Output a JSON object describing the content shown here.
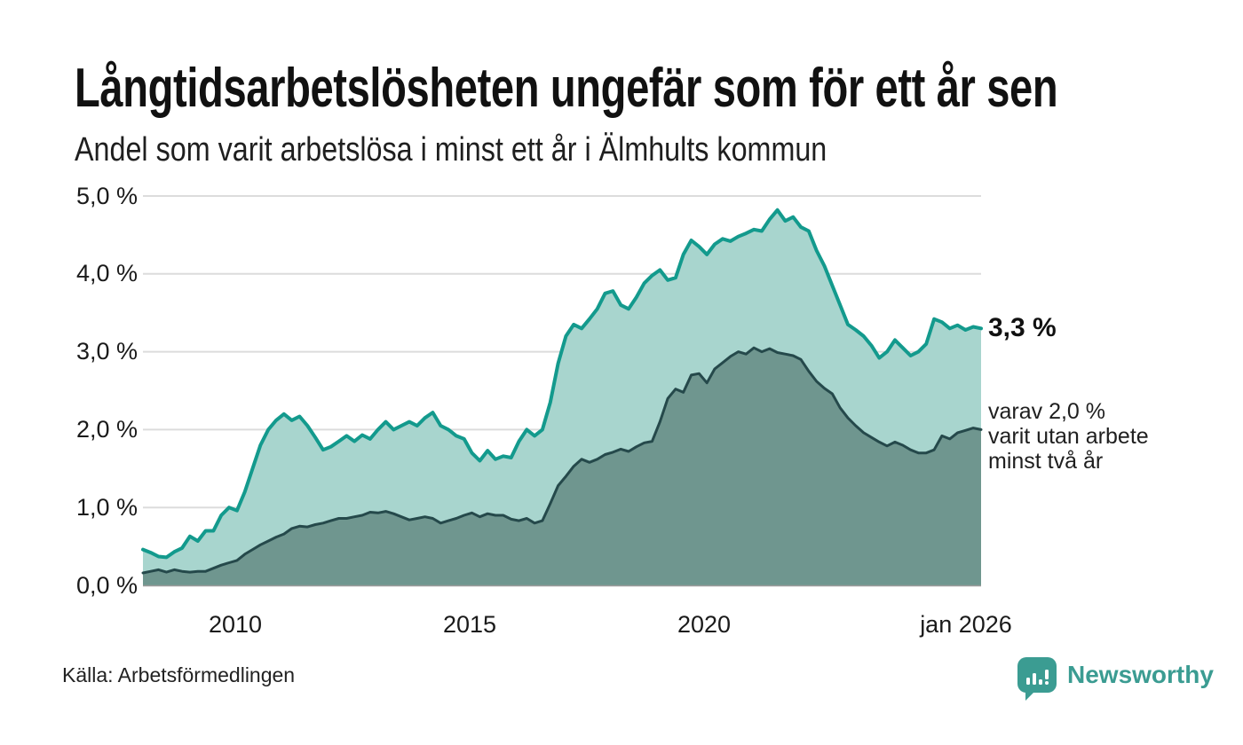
{
  "header": {
    "title": "Långtidsarbetslösheten ungefär som för ett år sen",
    "subtitle": "Andel som varit arbetslösa i minst ett år i Älmhults kommun"
  },
  "chart_data": {
    "type": "area",
    "title": "Långtidsarbetslösheten ungefär som för ett år sen",
    "subtitle": "Andel som varit arbetslösa i minst ett år i Älmhults kommun",
    "unit": "%",
    "ylim": [
      0,
      5
    ],
    "grid": true,
    "x_range": [
      "2008",
      "jan 2026"
    ],
    "y_tick_labels": [
      "5,0 %",
      "4,0 %",
      "3,0 %",
      "2,0 %",
      "1,0 %",
      "0,0 %"
    ],
    "x_tick_labels": [
      "2010",
      "2015",
      "2020",
      "jan 2026"
    ],
    "series": [
      {
        "name": "Arbetslösa minst ett år",
        "color": "#139a8d",
        "fill": "#a8d5ce",
        "last_value": 3.3,
        "values": [
          0.46,
          0.42,
          0.37,
          0.36,
          0.43,
          0.48,
          0.63,
          0.57,
          0.7,
          0.7,
          0.9,
          1.0,
          0.96,
          1.2,
          1.5,
          1.8,
          2.0,
          2.12,
          2.2,
          2.12,
          2.17,
          2.05,
          1.9,
          1.74,
          1.78,
          1.85,
          1.92,
          1.85,
          1.93,
          1.88,
          2.0,
          2.1,
          2.0,
          2.05,
          2.1,
          2.05,
          2.15,
          2.22,
          2.05,
          2.0,
          1.92,
          1.88,
          1.7,
          1.6,
          1.73,
          1.62,
          1.66,
          1.64,
          1.85,
          2.0,
          1.92,
          2.0,
          2.35,
          2.85,
          3.2,
          3.35,
          3.3,
          3.42,
          3.55,
          3.75,
          3.78,
          3.6,
          3.55,
          3.7,
          3.88,
          3.98,
          4.05,
          3.92,
          3.95,
          4.25,
          4.43,
          4.35,
          4.25,
          4.38,
          4.45,
          4.42,
          4.48,
          4.52,
          4.57,
          4.55,
          4.7,
          4.82,
          4.68,
          4.73,
          4.6,
          4.55,
          4.3,
          4.1,
          3.85,
          3.6,
          3.35,
          3.28,
          3.2,
          3.08,
          2.92,
          3.0,
          3.15,
          3.05,
          2.95,
          3.0,
          3.1,
          3.42,
          3.38,
          3.3,
          3.34,
          3.28,
          3.32,
          3.3
        ]
      },
      {
        "name": "varav utan arbete minst två år",
        "color": "#25494b",
        "fill": "#6f968f",
        "last_value": 2.0,
        "values": [
          0.16,
          0.18,
          0.2,
          0.17,
          0.2,
          0.18,
          0.17,
          0.18,
          0.18,
          0.22,
          0.26,
          0.29,
          0.32,
          0.4,
          0.46,
          0.52,
          0.57,
          0.62,
          0.66,
          0.73,
          0.76,
          0.75,
          0.78,
          0.8,
          0.83,
          0.86,
          0.86,
          0.88,
          0.9,
          0.94,
          0.93,
          0.95,
          0.92,
          0.88,
          0.84,
          0.86,
          0.88,
          0.86,
          0.8,
          0.83,
          0.86,
          0.9,
          0.93,
          0.88,
          0.92,
          0.9,
          0.9,
          0.85,
          0.83,
          0.86,
          0.8,
          0.83,
          1.05,
          1.28,
          1.4,
          1.53,
          1.62,
          1.58,
          1.62,
          1.68,
          1.71,
          1.75,
          1.72,
          1.78,
          1.83,
          1.85,
          2.1,
          2.4,
          2.52,
          2.48,
          2.7,
          2.72,
          2.6,
          2.78,
          2.86,
          2.94,
          3.0,
          2.97,
          3.05,
          3.0,
          3.04,
          2.99,
          2.97,
          2.95,
          2.9,
          2.75,
          2.62,
          2.53,
          2.46,
          2.28,
          2.15,
          2.05,
          1.96,
          1.9,
          1.84,
          1.79,
          1.84,
          1.8,
          1.74,
          1.7,
          1.7,
          1.74,
          1.92,
          1.88,
          1.96,
          1.99,
          2.02,
          2.0
        ]
      }
    ],
    "annotations": {
      "last_value_total": "3,3 %",
      "secondary_note": "varav 2,0 %\nvarit utan arbete\nminst två år"
    },
    "colors": {
      "gridline": "#dcdcdc",
      "axis": "#9b9b9b",
      "text": "#1a1a1a"
    },
    "legend_position": "none"
  },
  "footer": {
    "source": "Källa: Arbetsförmedlingen",
    "brand": "Newsworthy"
  }
}
